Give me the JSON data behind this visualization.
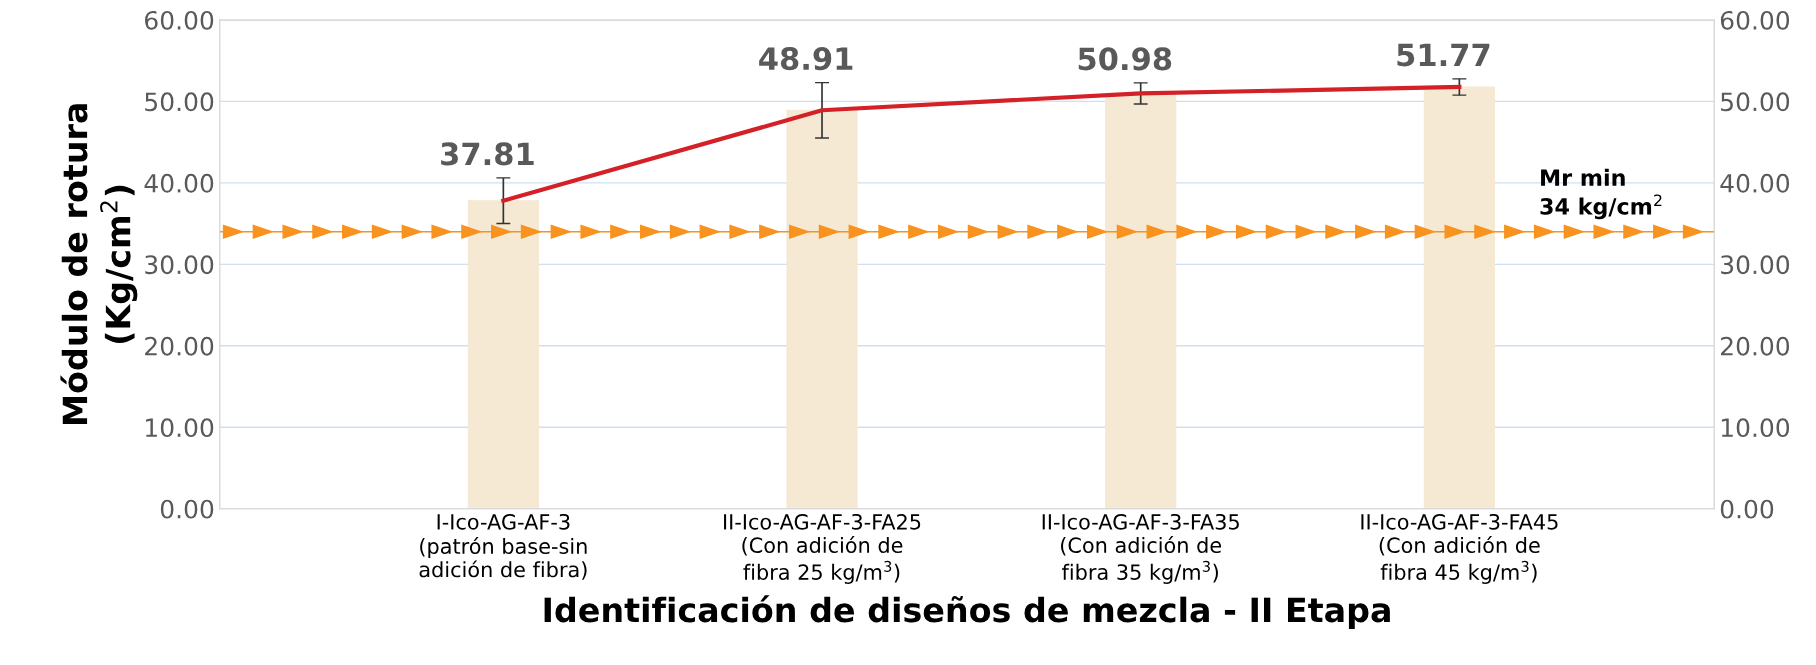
{
  "chart_data": {
    "type": "bar",
    "categories": [
      "I-Ico-AG-AF-3\n(patrón base-sin\nadición de fibra)",
      "II-Ico-AG-AF-3-FA25\n(Con adición de\nfibra 25 kg/m$^{3}$)",
      "II-Ico-AG-AF-3-FA35\n(Con adición de\nfibra 35 kg/m$^{3}$)",
      "II-Ico-AG-AF-3-FA45\n(Con adición de\nfibra 45 kg/m$^{3}$)"
    ],
    "series": [
      {
        "color": "#f5e9d3",
        "values": [
          37.81,
          48.91,
          50.98,
          51.77
        ],
        "errors": [
          2.8,
          3.4,
          1.3,
          1.0
        ],
        "value_labels": [
          "37.81",
          "48.91",
          "50.98",
          "51.77"
        ]
      },
      {
        "type": "line",
        "color": "#d42027",
        "values": [
          37.81,
          48.91,
          50.98,
          51.77
        ]
      }
    ],
    "xlabel": "Identificación de diseños de mezcla - II Etapa",
    "ylabel": "Módulo de rotura\n(Kg/cm$^{2}$)",
    "ylim": [
      0,
      60
    ],
    "yticks": [
      {
        "value": 0,
        "label": "0.00"
      },
      {
        "value": 10,
        "label": "10.00"
      },
      {
        "value": 20,
        "label": "20.00"
      },
      {
        "value": 30,
        "label": "30.00"
      },
      {
        "value": 40,
        "label": "40.00"
      },
      {
        "value": 50,
        "label": "50.00"
      },
      {
        "value": 60,
        "label": "60.00"
      }
    ],
    "y2lim": [
      0,
      60
    ],
    "y2ticks": [
      {
        "value": 0,
        "label": "0.00"
      },
      {
        "value": 10,
        "label": "10.00"
      },
      {
        "value": 20,
        "label": "20.00"
      },
      {
        "value": 30,
        "label": "30.00"
      },
      {
        "value": 40,
        "label": "40.00"
      },
      {
        "value": 50,
        "label": "50.00"
      },
      {
        "value": 60,
        "label": "60.00"
      }
    ],
    "ref_lines": [
      {
        "axis": "y",
        "value": 34,
        "label": "Mr min\n34 kg/cm$^{2}$",
        "color": "#f7931e"
      }
    ],
    "grid": "y"
  }
}
